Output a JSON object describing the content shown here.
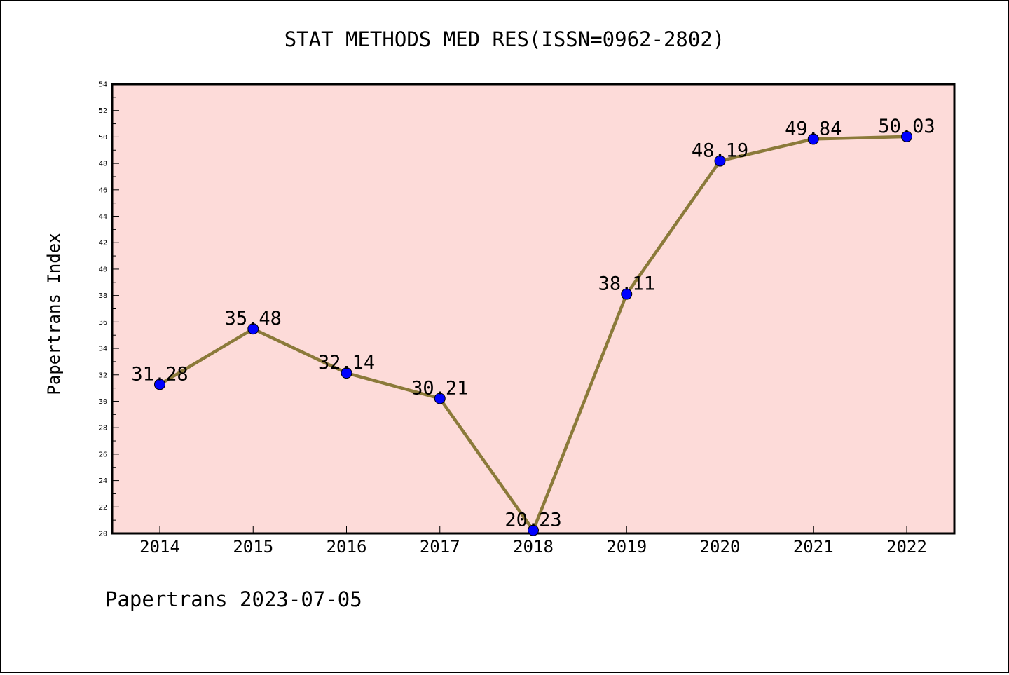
{
  "chart_data": {
    "type": "line",
    "title": "STAT METHODS MED RES(ISSN=0962-2802)",
    "xlabel": "",
    "ylabel": "Papertrans Index",
    "categories": [
      "2014",
      "2015",
      "2016",
      "2017",
      "2018",
      "2019",
      "2020",
      "2021",
      "2022"
    ],
    "series": [
      {
        "values": [
          31.28,
          35.48,
          32.14,
          30.21,
          20.23,
          38.11,
          48.19,
          49.84,
          50.03
        ],
        "labels": [
          "31.28",
          "35.48",
          "32.14",
          "30.21",
          "20.23",
          "38.11",
          "48.19",
          "49.84",
          "50.03"
        ]
      }
    ],
    "ylim": [
      20,
      54
    ],
    "yticks": [
      "20",
      "22",
      "24",
      "26",
      "28",
      "30",
      "32",
      "34",
      "36",
      "38",
      "40",
      "42",
      "44",
      "46",
      "48",
      "50",
      "52",
      "54"
    ],
    "grid": false,
    "legend": "none",
    "colors": {
      "plot_background": "#fddbd9",
      "line": "#8b7a3a",
      "marker": "#0000ff",
      "axes": "#000000"
    }
  },
  "footer": {
    "source": "Papertrans 2023-07-05"
  }
}
